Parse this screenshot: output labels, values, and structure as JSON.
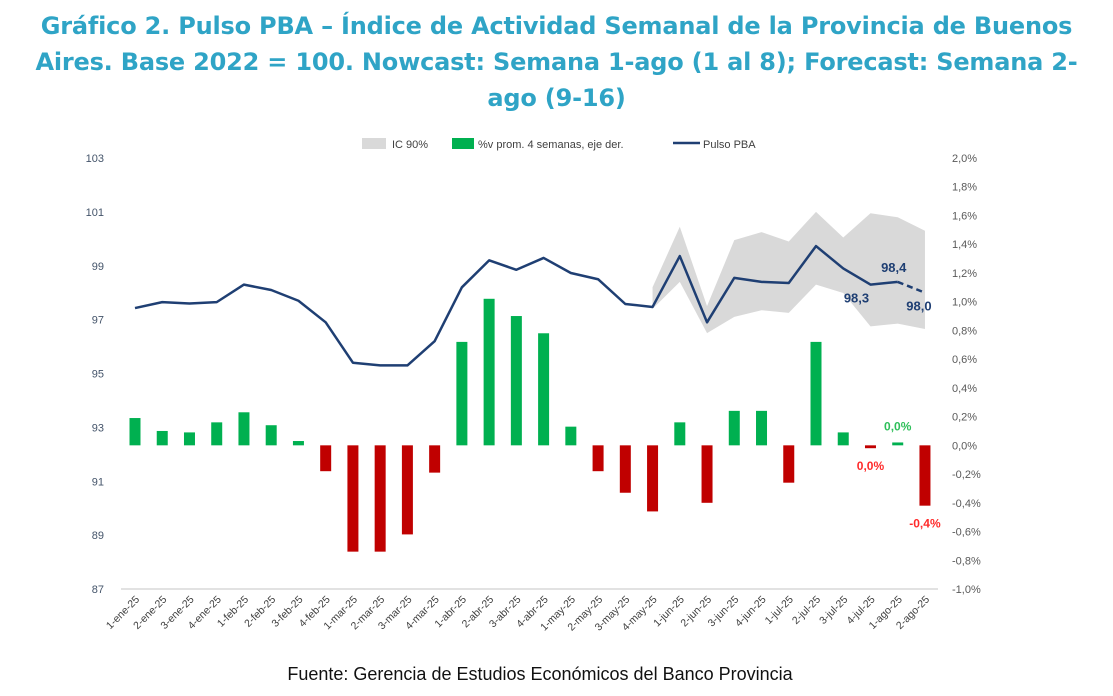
{
  "chart_data": {
    "type": "bar+line",
    "title": "Gráfico 2. Pulso PBA – Índice de Actividad Semanal de la Provincia de Buenos Aires. Base 2022 = 100. Nowcast: Semana 1-ago (1 al 8); Forecast: Semana 2-ago (9-16)",
    "source": "Fuente: Gerencia de Estudios Económicos del Banco Provincia",
    "categories": [
      "1-ene-25",
      "2-ene-25",
      "3-ene-25",
      "4-ene-25",
      "1-feb-25",
      "2-feb-25",
      "3-feb-25",
      "4-feb-25",
      "1-mar-25",
      "2-mar-25",
      "3-mar-25",
      "4-mar-25",
      "1-abr-25",
      "2-abr-25",
      "3-abr-25",
      "4-abr-25",
      "1-may-25",
      "2-may-25",
      "3-may-25",
      "4-may-25",
      "1-jun-25",
      "2-jun-25",
      "3-jun-25",
      "4-jun-25",
      "1-jul-25",
      "2-jul-25",
      "3-jul-25",
      "4-jul-25",
      "1-ago-25",
      "2-ago-25"
    ],
    "legend": [
      "IC 90%",
      "%v prom. 4 semanas, eje der.",
      "Pulso PBA"
    ],
    "legend_position": "top",
    "left_axis": {
      "min": 87,
      "max": 103,
      "ticks": [
        "87",
        "89",
        "91",
        "93",
        "95",
        "97",
        "99",
        "101",
        "103"
      ]
    },
    "right_axis": {
      "min": -1.0,
      "max": 2.0,
      "ticks": [
        "-1,0%",
        "-0,8%",
        "-0,6%",
        "-0,4%",
        "-0,2%",
        "0,0%",
        "0,2%",
        "0,4%",
        "0,6%",
        "0,8%",
        "1,0%",
        "1,2%",
        "1,4%",
        "1,6%",
        "1,8%",
        "2,0%"
      ]
    },
    "series": [
      {
        "name": "Pulso PBA",
        "axis": "left",
        "type": "line",
        "dashed_from_index": 28,
        "values": [
          97.43,
          97.65,
          97.6,
          97.65,
          98.3,
          98.1,
          97.7,
          96.9,
          95.4,
          95.3,
          95.3,
          96.2,
          98.2,
          99.2,
          98.85,
          99.29,
          98.73,
          98.5,
          97.58,
          97.47,
          99.36,
          96.9,
          98.55,
          98.4,
          98.36,
          99.73,
          98.9,
          98.3,
          98.4,
          98.0
        ]
      },
      {
        "name": "%v prom. 4 semanas, eje der.",
        "axis": "right",
        "type": "bar",
        "values": [
          0.19,
          0.1,
          0.09,
          0.16,
          0.23,
          0.14,
          0.03,
          -0.18,
          -0.74,
          -0.74,
          -0.62,
          -0.19,
          0.72,
          1.02,
          0.9,
          0.78,
          0.13,
          -0.18,
          -0.33,
          -0.46,
          0.16,
          -0.4,
          0.24,
          0.24,
          -0.26,
          0.72,
          0.09,
          -0.02,
          0.02,
          -0.42
        ]
      },
      {
        "name": "IC 90%",
        "axis": "left",
        "type": "band",
        "start_index": 19,
        "upper": [
          98.2,
          100.45,
          97.5,
          99.95,
          100.25,
          99.9,
          101.0,
          100.05,
          100.95,
          100.8,
          100.3
        ],
        "lower": [
          97.4,
          98.4,
          96.5,
          97.1,
          97.35,
          97.25,
          98.3,
          97.99,
          96.75,
          96.85,
          96.65
        ]
      }
    ],
    "annotations": {
      "line_labels": [
        {
          "index": 27,
          "text": "98,3"
        },
        {
          "index": 28,
          "text": "98,4"
        },
        {
          "index": 29,
          "text": "98,0"
        }
      ],
      "bar_labels": [
        {
          "index": 27,
          "text": "0,0%",
          "color": "#ff2a2a"
        },
        {
          "index": 28,
          "text": "0,0%",
          "color": "#2fbf5a"
        },
        {
          "index": 29,
          "text": "-0,4%",
          "color": "#ff2a2a"
        }
      ]
    },
    "colors": {
      "line": "#1f3f73",
      "bar_pos": "#00b050",
      "bar_neg": "#c00000",
      "band": "#d9d9d9"
    }
  }
}
